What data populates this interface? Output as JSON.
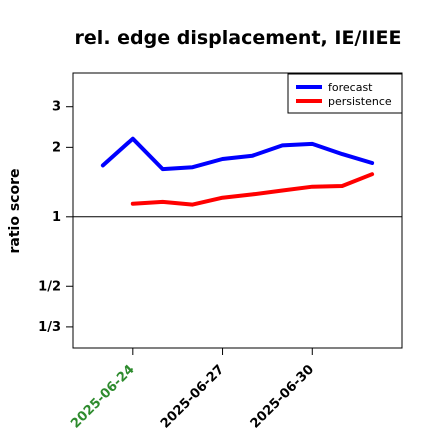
{
  "chart_data": {
    "type": "line",
    "title": "rel. edge displacement, IE/IIEE",
    "xlabel": "",
    "ylabel": "ratio score",
    "y_scale": "log",
    "ylim": [
      0.27,
      4.2
    ],
    "reference_line": 1,
    "y_ticks": [
      {
        "value": 0.3333,
        "label": "1/3"
      },
      {
        "value": 0.5,
        "label": "1/2"
      },
      {
        "value": 1,
        "label": "1"
      },
      {
        "value": 2,
        "label": "2"
      },
      {
        "value": 3,
        "label": "3"
      }
    ],
    "x": [
      "2025-06-23",
      "2025-06-24",
      "2025-06-25",
      "2025-06-26",
      "2025-06-27",
      "2025-06-28",
      "2025-06-29",
      "2025-06-30",
      "2025-07-01",
      "2025-07-02"
    ],
    "xlim": [
      "2025-06-22",
      "2025-07-03"
    ],
    "x_ticks": [
      {
        "value": "2025-06-24",
        "label": "2025-06-24",
        "color": "#2e8b2e"
      },
      {
        "value": "2025-06-27",
        "label": "2025-06-27",
        "color": "#000000"
      },
      {
        "value": "2025-06-30",
        "label": "2025-06-30",
        "color": "#000000"
      }
    ],
    "series": [
      {
        "name": "forecast",
        "color": "#0000ff",
        "values": [
          1.67,
          2.18,
          1.61,
          1.64,
          1.78,
          1.84,
          2.04,
          2.07,
          1.87,
          1.71
        ]
      },
      {
        "name": "persistence",
        "color": "#ff0000",
        "values": [
          null,
          1.14,
          1.16,
          1.13,
          1.21,
          1.25,
          1.3,
          1.35,
          1.36,
          1.53
        ]
      }
    ],
    "legend": "top-right",
    "grid": false
  }
}
